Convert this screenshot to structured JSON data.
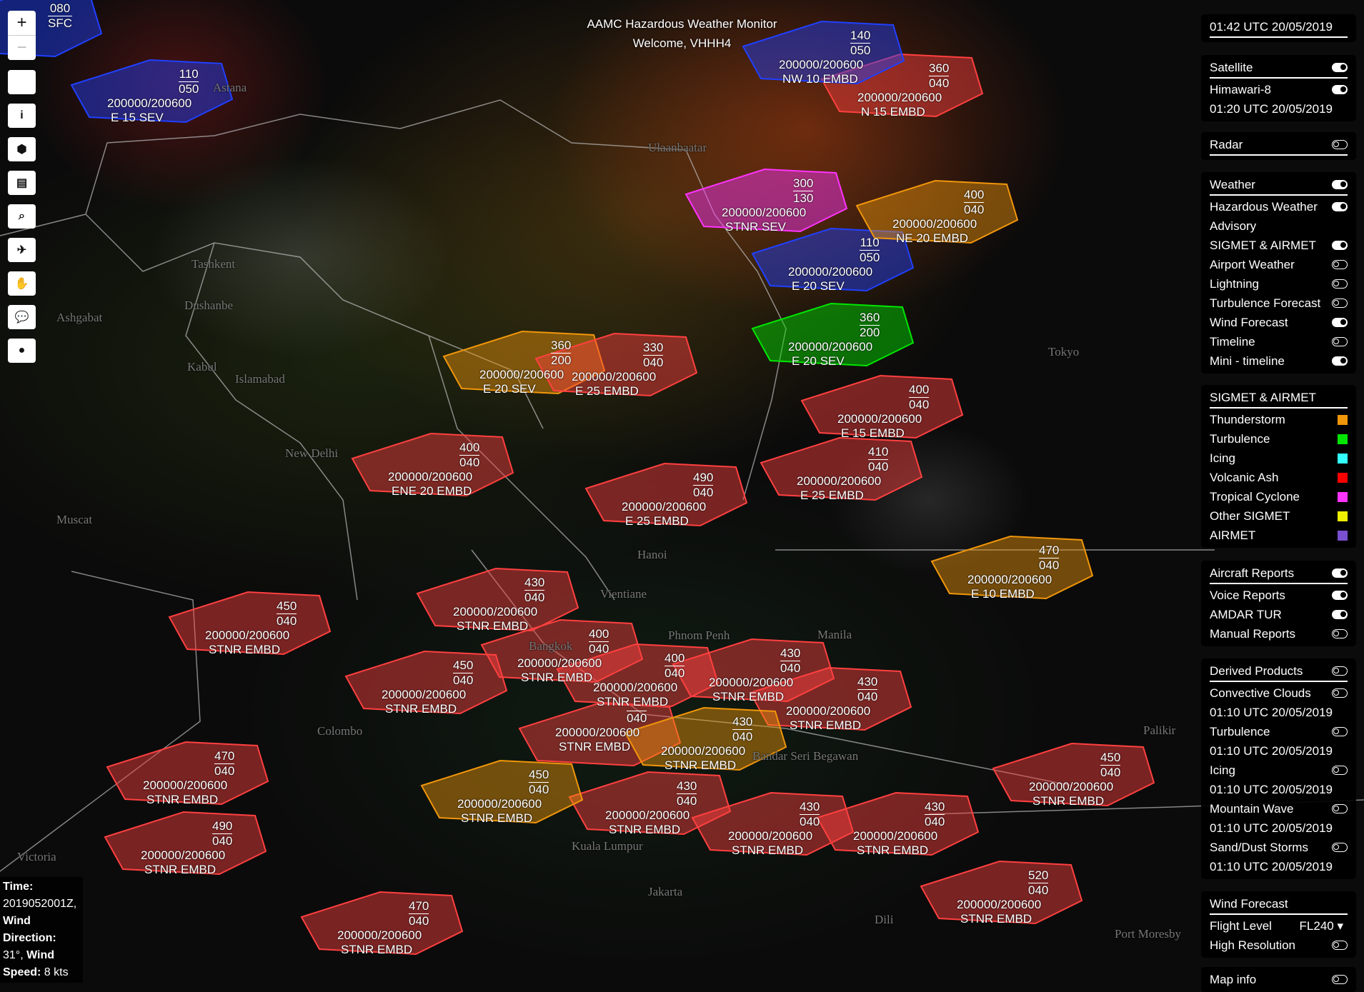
{
  "header": {
    "title": "AAMC Hazardous Weather Monitor",
    "welcome": "Welcome,  VHHH4"
  },
  "toolbar": {
    "zoom_in": "+",
    "zoom_out": "−",
    "buttons": [
      {
        "icon": "blank-icon",
        "glyph": ""
      },
      {
        "icon": "info-icon",
        "glyph": "i"
      },
      {
        "icon": "cube-icon",
        "glyph": "⬢"
      },
      {
        "icon": "document-icon",
        "glyph": "▤"
      },
      {
        "icon": "search-icon",
        "glyph": "⌕"
      },
      {
        "icon": "airplane-icon",
        "glyph": "✈"
      },
      {
        "icon": "handshake-icon",
        "glyph": "✋"
      },
      {
        "icon": "chat-icon",
        "glyph": "💬"
      },
      {
        "icon": "user-icon",
        "glyph": "●"
      }
    ]
  },
  "info_box": {
    "time_label": "Time:",
    "time_value": "2019052001Z,",
    "dir_label": "Wind Direction:",
    "dir_value": "31°,",
    "speed_label_prefix": "Wind",
    "speed_label": "Speed:",
    "speed_value": "8 kts"
  },
  "panel": {
    "clock": "01:42 UTC 20/05/2019",
    "satellite": {
      "label": "Satellite",
      "on": true,
      "items": [
        {
          "label": "Himawari-8",
          "on": true
        }
      ],
      "time": "01:20 UTC 20/05/2019"
    },
    "radar": {
      "label": "Radar",
      "on": false
    },
    "weather": {
      "label": "Weather",
      "on": true,
      "items": [
        {
          "label": "Hazardous Weather",
          "on": true
        },
        {
          "label": "Advisory",
          "on": null
        },
        {
          "label": "SIGMET & AIRMET",
          "on": true
        },
        {
          "label": "Airport Weather",
          "on": false
        },
        {
          "label": "Lightning",
          "on": false
        },
        {
          "label": "Turbulence Forecast",
          "on": false
        },
        {
          "label": "Wind Forecast",
          "on": true
        },
        {
          "label": "Timeline",
          "on": false
        },
        {
          "label": "Mini - timeline",
          "on": true
        }
      ]
    },
    "legend": {
      "label": "SIGMET & AIRMET",
      "items": [
        {
          "label": "Thunderstorm",
          "color": "#f0960a"
        },
        {
          "label": "Turbulence",
          "color": "#00e600"
        },
        {
          "label": "Icing",
          "color": "#33ffff"
        },
        {
          "label": "Volcanic Ash",
          "color": "#ff0000"
        },
        {
          "label": "Tropical Cyclone",
          "color": "#ff33ff"
        },
        {
          "label": "Other SIGMET",
          "color": "#eeee00"
        },
        {
          "label": "AIRMET",
          "color": "#7a4fd0"
        }
      ]
    },
    "aircraft": {
      "label": "Aircraft Reports",
      "on": true,
      "items": [
        {
          "label": "Voice Reports",
          "on": true
        },
        {
          "label": "AMDAR TUR",
          "on": true
        },
        {
          "label": "Manual Reports",
          "on": false
        }
      ]
    },
    "derived": {
      "label": "Derived Products",
      "on": false,
      "items": [
        {
          "label": "Convective Clouds",
          "on": false,
          "time": "01:10 UTC 20/05/2019"
        },
        {
          "label": "Turbulence",
          "on": false,
          "time": "01:10 UTC 20/05/2019"
        },
        {
          "label": "Icing",
          "on": false,
          "time": "01:10 UTC 20/05/2019"
        },
        {
          "label": "Mountain Wave",
          "on": false,
          "time": "01:10 UTC 20/05/2019"
        },
        {
          "label": "Sand/Dust Storms",
          "on": false,
          "time": "01:10 UTC 20/05/2019"
        }
      ]
    },
    "wind": {
      "label": "Wind Forecast",
      "flight_level_label": "Flight Level",
      "flight_level": "FL240",
      "high_res_label": "High Resolution",
      "high_res_on": false
    },
    "map_info": {
      "label": "Map info",
      "on": false
    }
  },
  "sigmets": [
    {
      "top": "080",
      "bottom": "SFC",
      "validity": "",
      "movement": "",
      "color": "#2040ff"
    },
    {
      "top": "110",
      "bottom": "050",
      "validity": "200000/200600",
      "movement": "E 15 SEV",
      "color": "#2040ff"
    },
    {
      "top": "360",
      "bottom": "200",
      "validity": "200000/200600",
      "movement": "E 20 SEV",
      "color": "#f0960a"
    },
    {
      "top": "330",
      "bottom": "040",
      "validity": "200000/200600",
      "movement": "E 25 EMBD",
      "color": "#ff4040"
    },
    {
      "top": "360",
      "bottom": "200",
      "validity": "200000/200600",
      "movement": "E 20 SEV",
      "color": "#00e600"
    },
    {
      "top": "300",
      "bottom": "130",
      "validity": "200000/200600",
      "movement": "STNR SEV",
      "color": "#ff33ff"
    },
    {
      "top": "110",
      "bottom": "050",
      "validity": "200000/200600",
      "movement": "E 20 SEV",
      "color": "#2040ff"
    },
    {
      "top": "400",
      "bottom": "040",
      "validity": "200000/200600",
      "movement": "NE 20 EMBD",
      "color": "#f0960a"
    },
    {
      "top": "400",
      "bottom": "040",
      "validity": "200000/200600",
      "movement": "E 15 EMBD",
      "color": "#ff4040"
    },
    {
      "top": "410",
      "bottom": "040",
      "validity": "200000/200600",
      "movement": "E 25 EMBD",
      "color": "#ff4040"
    },
    {
      "top": "490",
      "bottom": "040",
      "validity": "200000/200600",
      "movement": "E 25 EMBD",
      "color": "#ff4040"
    },
    {
      "top": "400",
      "bottom": "040",
      "validity": "200000/200600",
      "movement": "ENE 20 EMBD",
      "color": "#ff4040"
    },
    {
      "top": "450",
      "bottom": "040",
      "validity": "200000/200600",
      "movement": "STNR EMBD",
      "color": "#ff4040"
    },
    {
      "top": "430",
      "bottom": "040",
      "validity": "200000/200600",
      "movement": "STNR EMBD",
      "color": "#ff4040"
    },
    {
      "top": "450",
      "bottom": "040",
      "validity": "200000/200600",
      "movement": "STNR EMBD",
      "color": "#ff4040"
    },
    {
      "top": "400",
      "bottom": "040",
      "validity": "200000/200600",
      "movement": "STNR EMBD",
      "color": "#ff4040"
    },
    {
      "top": "400",
      "bottom": "040",
      "validity": "200000/200600",
      "movement": "STNR EMBD",
      "color": "#ff4040"
    },
    {
      "top": "430",
      "bottom": "040",
      "validity": "200000/200600",
      "movement": "STNR EMBD",
      "color": "#ff4040"
    },
    {
      "top": "430",
      "bottom": "040",
      "validity": "200000/200600",
      "movement": "STNR EMBD",
      "color": "#ff4040"
    },
    {
      "top": "470",
      "bottom": "040",
      "validity": "200000/200600",
      "movement": "E 10 EMBD",
      "color": "#f0960a"
    },
    {
      "top": "470",
      "bottom": "040",
      "validity": "200000/200600",
      "movement": "STNR EMBD",
      "color": "#ff4040"
    },
    {
      "top": "490",
      "bottom": "040",
      "validity": "200000/200600",
      "movement": "STNR EMBD",
      "color": "#ff4040"
    },
    {
      "top": "470",
      "bottom": "040",
      "validity": "200000/200600",
      "movement": "STNR EMBD",
      "color": "#ff4040"
    },
    {
      "top": "450",
      "bottom": "040",
      "validity": "200000/200600",
      "movement": "STNR EMBD",
      "color": "#ff4040"
    },
    {
      "top": "430",
      "bottom": "040",
      "validity": "200000/200600",
      "movement": "STNR EMBD",
      "color": "#ff4040"
    },
    {
      "top": "430",
      "bottom": "040",
      "validity": "200000/200600",
      "movement": "STNR EMBD",
      "color": "#ff4040"
    },
    {
      "top": "520",
      "bottom": "040",
      "validity": "200000/200600",
      "movement": "STNR EMBD",
      "color": "#ff4040"
    },
    {
      "top": "430",
      "bottom": "040",
      "validity": "200000/200600",
      "movement": "STNR EMBD",
      "color": "#ff4040"
    },
    {
      "top": "",
      "bottom": "040",
      "validity": "200000/200600",
      "movement": "STNR EMBD",
      "color": "#ff4040"
    },
    {
      "top": "450",
      "bottom": "040",
      "validity": "200000/200600",
      "movement": "STNR EMBD",
      "color": "#f0960a"
    },
    {
      "top": "430",
      "bottom": "040",
      "validity": "200000/200600",
      "movement": "STNR EMBD",
      "color": "#f0960a"
    },
    {
      "top": "360",
      "bottom": "040",
      "validity": "200000/200600",
      "movement": "N 15 EMBD",
      "color": "#ff4040"
    },
    {
      "top": "140",
      "bottom": "050",
      "validity": "200000/200600",
      "movement": "NW 10 EMBD",
      "color": "#2040ff"
    }
  ],
  "cities": [
    "Astana",
    "Tashkent",
    "Dushanbe",
    "Ashgabat",
    "Kabul",
    "Islamabad",
    "New Delhi",
    "Muscat",
    "Colombo",
    "Hanoi",
    "Vientiane",
    "Bangkok",
    "Phnom Penh",
    "Manila",
    "Bandar Seri Begawan",
    "Kuala Lumpur",
    "Jakarta",
    "Dili",
    "Port Moresby",
    "Palikir",
    "Victoria",
    "Ulaanbaatar",
    "Tokyo"
  ]
}
